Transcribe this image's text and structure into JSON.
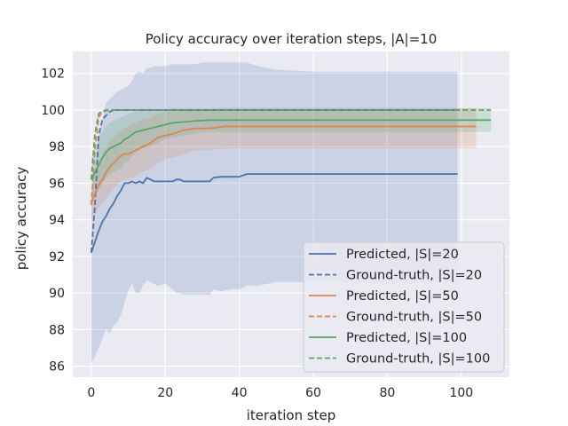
{
  "chart_data": {
    "type": "line",
    "title": "Policy accuracy over iteration steps, |A|=10",
    "xlabel": "iteration step",
    "ylabel": "policy accuracy",
    "xlim": [
      -5,
      113
    ],
    "ylim": [
      85.4,
      103.2
    ],
    "xticks": [
      0,
      20,
      40,
      60,
      80,
      100
    ],
    "yticks": [
      86,
      88,
      90,
      92,
      94,
      96,
      98,
      100,
      102
    ],
    "grid": true,
    "legend_position": "lower-right",
    "colors": {
      "s20": "#4c72b0",
      "s50": "#dd8452",
      "s100": "#55a868",
      "background": "#eaeaf2",
      "grid": "#ffffff"
    },
    "series": [
      {
        "name": "Predicted, |S|=20",
        "color": "#4c72b0",
        "style": "solid",
        "x": [
          0,
          1,
          2,
          3,
          4,
          5,
          6,
          7,
          8,
          9,
          10,
          11,
          12,
          13,
          14,
          15,
          16,
          17,
          18,
          20,
          22,
          23,
          24,
          25,
          26,
          28,
          30,
          32,
          33,
          35,
          38,
          40,
          42,
          45,
          50,
          60,
          70,
          80,
          90,
          99
        ],
        "y": [
          92.2,
          92.8,
          93.4,
          93.9,
          94.2,
          94.6,
          94.9,
          95.3,
          95.6,
          96.0,
          96.0,
          96.1,
          96.0,
          96.1,
          96.0,
          96.3,
          96.2,
          96.1,
          96.1,
          96.1,
          96.1,
          96.2,
          96.2,
          96.1,
          96.1,
          96.1,
          96.1,
          96.1,
          96.3,
          96.35,
          96.35,
          96.35,
          96.5,
          96.5,
          96.5,
          96.5,
          96.5,
          96.5,
          96.5,
          96.5
        ],
        "band_upper": [
          95.4,
          97.0,
          98.5,
          99.5,
          100.4,
          100.6,
          100.8,
          101.0,
          101.1,
          101.2,
          101.3,
          101.6,
          102.0,
          102.1,
          102.0,
          102.3,
          102.3,
          102.4,
          102.4,
          102.4,
          102.5,
          102.5,
          102.5,
          102.5,
          102.5,
          102.5,
          102.6,
          102.6,
          102.6,
          102.6,
          102.6,
          102.6,
          102.6,
          102.4,
          102.2,
          102.1,
          102.1,
          102.1,
          102.1,
          102.1
        ],
        "band_lower": [
          86.2,
          86.5,
          87.0,
          87.5,
          88.0,
          87.8,
          88.2,
          88.4,
          88.8,
          89.5,
          90.1,
          90.5,
          90.0,
          90.0,
          90.4,
          90.7,
          90.6,
          90.5,
          90.4,
          90.5,
          90.2,
          90.0,
          90.0,
          89.9,
          89.9,
          89.9,
          89.9,
          89.9,
          90.2,
          90.1,
          90.2,
          90.2,
          90.4,
          90.4,
          90.6,
          90.6,
          90.6,
          90.5,
          90.6,
          90.6
        ]
      },
      {
        "name": "Ground-truth, |S|=20",
        "color": "#4c72b0",
        "style": "dashed",
        "x": [
          0,
          1,
          2,
          3,
          4,
          5,
          6,
          8,
          10,
          20,
          40,
          60,
          80,
          99
        ],
        "y": [
          92.2,
          94.8,
          98.6,
          99.5,
          99.7,
          99.9,
          100.0,
          100.0,
          100.0,
          100.0,
          100.0,
          100.0,
          100.0,
          100.0
        ]
      },
      {
        "name": "Predicted, |S|=50",
        "color": "#dd8452",
        "style": "solid",
        "x": [
          0,
          1,
          2,
          3,
          4,
          5,
          6,
          7,
          8,
          9,
          10,
          12,
          14,
          16,
          18,
          20,
          22,
          25,
          28,
          32,
          36,
          40,
          45,
          50,
          60,
          70,
          80,
          90,
          100,
          104
        ],
        "y": [
          94.9,
          95.4,
          95.9,
          96.2,
          96.6,
          96.9,
          97.1,
          97.3,
          97.5,
          97.6,
          97.6,
          97.8,
          98.0,
          98.2,
          98.5,
          98.6,
          98.7,
          98.9,
          99.0,
          99.0,
          99.1,
          99.1,
          99.1,
          99.1,
          99.1,
          99.1,
          99.1,
          99.1,
          99.1,
          99.1
        ],
        "band_upper": [
          95.8,
          96.5,
          97.1,
          97.6,
          98.0,
          98.3,
          98.5,
          98.7,
          98.9,
          99.0,
          99.1,
          99.3,
          99.5,
          99.6,
          99.8,
          99.9,
          99.9,
          100.0,
          100.0,
          100.0,
          100.1,
          100.1,
          100.1,
          100.1,
          100.1,
          100.1,
          100.1,
          100.1,
          100.1,
          100.1
        ],
        "band_lower": [
          94.0,
          94.3,
          94.7,
          94.9,
          95.1,
          95.4,
          95.7,
          95.9,
          96.1,
          96.2,
          96.2,
          96.4,
          96.6,
          96.8,
          97.1,
          97.3,
          97.4,
          97.6,
          97.8,
          97.8,
          97.9,
          97.9,
          97.9,
          97.9,
          97.9,
          97.9,
          97.9,
          97.9,
          97.9,
          97.9
        ]
      },
      {
        "name": "Ground-truth, |S|=50",
        "color": "#dd8452",
        "style": "dashed",
        "x": [
          0,
          1,
          2,
          3,
          4,
          5,
          6,
          8,
          10,
          20,
          40,
          60,
          80,
          100,
          104
        ],
        "y": [
          94.8,
          97.8,
          99.6,
          99.9,
          99.95,
          100.0,
          100.0,
          100.0,
          100.0,
          100.0,
          100.0,
          100.0,
          100.0,
          100.0,
          100.0
        ]
      },
      {
        "name": "Predicted, |S|=100",
        "color": "#55a868",
        "style": "solid",
        "x": [
          0,
          1,
          2,
          3,
          4,
          5,
          6,
          7,
          8,
          9,
          10,
          12,
          14,
          16,
          18,
          20,
          22,
          25,
          28,
          32,
          36,
          40,
          45,
          50,
          60,
          70,
          80,
          90,
          100,
          108
        ],
        "y": [
          96.2,
          96.6,
          97.0,
          97.4,
          97.7,
          97.9,
          98.0,
          98.1,
          98.2,
          98.4,
          98.5,
          98.8,
          98.9,
          99.0,
          99.1,
          99.2,
          99.3,
          99.35,
          99.4,
          99.45,
          99.45,
          99.45,
          99.45,
          99.45,
          99.45,
          99.45,
          99.45,
          99.45,
          99.45,
          99.45
        ],
        "band_upper": [
          97.4,
          97.9,
          98.4,
          98.8,
          99.1,
          99.3,
          99.4,
          99.5,
          99.6,
          99.7,
          99.8,
          99.9,
          99.95,
          100.0,
          100.0,
          100.0,
          100.1,
          100.1,
          100.1,
          100.1,
          100.1,
          100.1,
          100.1,
          100.1,
          100.1,
          100.1,
          100.1,
          100.1,
          100.1,
          100.1
        ],
        "band_lower": [
          95.0,
          95.3,
          95.6,
          96.0,
          96.3,
          96.5,
          96.6,
          96.7,
          96.8,
          97.1,
          97.2,
          97.7,
          97.9,
          98.0,
          98.2,
          98.4,
          98.5,
          98.6,
          98.7,
          98.8,
          98.8,
          98.8,
          98.8,
          98.8,
          98.8,
          98.8,
          98.8,
          98.8,
          98.8,
          98.8
        ]
      },
      {
        "name": "Ground-truth, |S|=100",
        "color": "#55a868",
        "style": "dashed",
        "x": [
          0,
          1,
          2,
          3,
          4,
          5,
          6,
          8,
          10,
          20,
          40,
          60,
          80,
          100,
          108
        ],
        "y": [
          96.2,
          98.7,
          99.8,
          99.95,
          100.0,
          100.0,
          100.0,
          100.0,
          100.0,
          100.0,
          100.0,
          100.0,
          100.0,
          100.0,
          100.0
        ]
      }
    ]
  }
}
